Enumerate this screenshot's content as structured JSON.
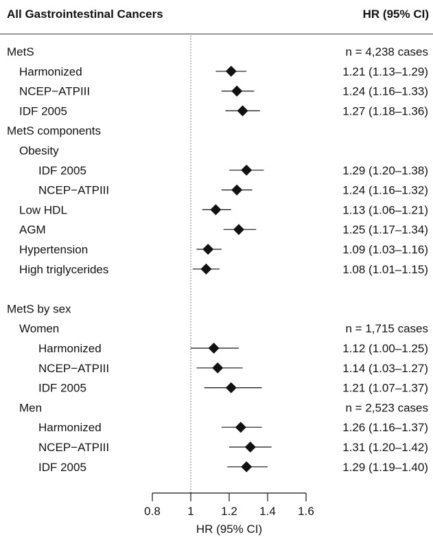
{
  "header": {
    "left": "All Gastrointestinal Cancers",
    "right": "HR (95% CI)"
  },
  "chart_data": {
    "type": "forest",
    "xlabel": "HR (95% CI)",
    "xlim": [
      0.8,
      1.6
    ],
    "xticks": [
      "0.8",
      "1",
      "1.2",
      "1.4",
      "1.6"
    ],
    "reference_line": 1,
    "rows": [
      {
        "label": "MetS",
        "indent": 0,
        "right": "n = 4,238 cases"
      },
      {
        "label": "Harmonized",
        "indent": 1,
        "hr": 1.21,
        "lo": 1.13,
        "hi": 1.29,
        "right": "1.21 (1.13–1.29)"
      },
      {
        "label": "NCEP−ATPIII",
        "indent": 1,
        "hr": 1.24,
        "lo": 1.16,
        "hi": 1.33,
        "right": "1.24 (1.16–1.33)"
      },
      {
        "label": "IDF 2005",
        "indent": 1,
        "hr": 1.27,
        "lo": 1.18,
        "hi": 1.36,
        "right": "1.27 (1.18–1.36)"
      },
      {
        "label": "MetS components",
        "indent": 0,
        "right": ""
      },
      {
        "label": "Obesity",
        "indent": 1,
        "right": ""
      },
      {
        "label": "IDF 2005",
        "indent": 2,
        "hr": 1.29,
        "lo": 1.2,
        "hi": 1.38,
        "right": "1.29 (1.20–1.38)"
      },
      {
        "label": "NCEP−ATPIII",
        "indent": 2,
        "hr": 1.24,
        "lo": 1.16,
        "hi": 1.32,
        "right": "1.24 (1.16–1.32)"
      },
      {
        "label": "Low HDL",
        "indent": 1,
        "hr": 1.13,
        "lo": 1.06,
        "hi": 1.21,
        "right": "1.13 (1.06–1.21)"
      },
      {
        "label": "AGM",
        "indent": 1,
        "hr": 1.25,
        "lo": 1.17,
        "hi": 1.34,
        "right": "1.25 (1.17–1.34)"
      },
      {
        "label": "Hypertension",
        "indent": 1,
        "hr": 1.09,
        "lo": 1.03,
        "hi": 1.16,
        "right": "1.09 (1.03–1.16)"
      },
      {
        "label": "High triglycerides",
        "indent": 1,
        "hr": 1.08,
        "lo": 1.01,
        "hi": 1.15,
        "right": "1.08 (1.01–1.15)"
      },
      {
        "label": "",
        "indent": 0,
        "right": ""
      },
      {
        "label": "MetS by sex",
        "indent": 0,
        "right": ""
      },
      {
        "label": "Women",
        "indent": 1,
        "right": "n = 1,715 cases"
      },
      {
        "label": "Harmonized",
        "indent": 2,
        "hr": 1.12,
        "lo": 1.0,
        "hi": 1.25,
        "right": "1.12 (1.00–1.25)"
      },
      {
        "label": "NCEP−ATPIII",
        "indent": 2,
        "hr": 1.14,
        "lo": 1.03,
        "hi": 1.27,
        "right": "1.14 (1.03–1.27)"
      },
      {
        "label": "IDF 2005",
        "indent": 2,
        "hr": 1.21,
        "lo": 1.07,
        "hi": 1.37,
        "right": "1.21 (1.07–1.37)"
      },
      {
        "label": "Men",
        "indent": 1,
        "right": "n = 2,523 cases"
      },
      {
        "label": "Harmonized",
        "indent": 2,
        "hr": 1.26,
        "lo": 1.16,
        "hi": 1.37,
        "right": "1.26 (1.16–1.37)"
      },
      {
        "label": "NCEP−ATPIII",
        "indent": 2,
        "hr": 1.31,
        "lo": 1.2,
        "hi": 1.42,
        "right": "1.31 (1.20–1.42)"
      },
      {
        "label": "IDF 2005",
        "indent": 2,
        "hr": 1.29,
        "lo": 1.19,
        "hi": 1.4,
        "right": "1.29 (1.19–1.40)"
      }
    ]
  }
}
